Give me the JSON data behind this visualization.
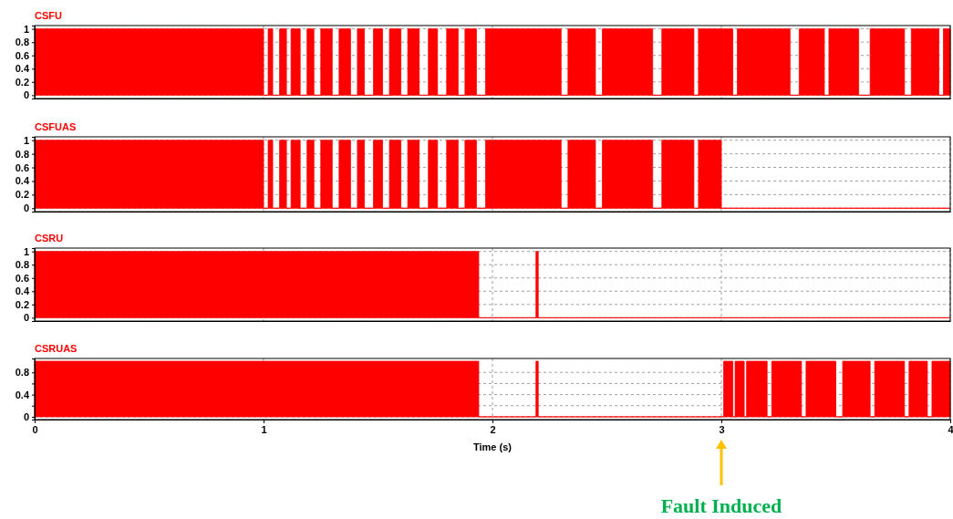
{
  "chart_data": [
    {
      "type": "area",
      "title": "CSFU",
      "x": [
        0,
        1.0,
        1.02,
        1.04,
        1.07,
        1.1,
        1.12,
        1.16,
        1.19,
        1.22,
        1.25,
        1.3,
        1.33,
        1.38,
        1.41,
        1.44,
        1.48,
        1.52,
        1.55,
        1.6,
        1.63,
        1.68,
        1.72,
        1.76,
        1.8,
        1.85,
        1.88,
        1.93,
        1.97,
        2.3,
        2.33,
        2.45,
        2.48,
        2.7,
        2.74,
        2.88,
        2.9,
        3.05,
        3.07,
        3.3,
        3.34,
        3.45,
        3.47,
        3.6,
        3.65,
        3.8,
        3.83,
        3.95,
        3.97,
        4.0
      ],
      "series": [
        {
          "color": "#ff0000",
          "values": [
            1,
            0,
            1,
            0,
            1,
            0,
            1,
            0,
            1,
            0,
            1,
            0,
            1,
            0,
            1,
            0,
            1,
            0,
            1,
            0,
            1,
            0,
            1,
            0,
            1,
            0,
            1,
            0,
            1,
            0,
            1,
            0,
            1,
            0,
            1,
            0,
            1,
            0,
            1,
            0,
            1,
            0,
            1,
            0,
            1,
            0,
            1,
            0,
            1,
            1
          ]
        }
      ],
      "xlim": [
        0,
        4
      ],
      "xticks": [
        0,
        1,
        2,
        3,
        4
      ],
      "ylim": [
        -0.05,
        1.05
      ],
      "yticks": [
        0,
        0.2,
        0.4,
        0.6,
        0.8,
        1
      ],
      "grid": true,
      "tick_labels": "y"
    },
    {
      "type": "area",
      "title": "CSFUAS",
      "x": [
        0,
        1.0,
        1.02,
        1.04,
        1.07,
        1.1,
        1.12,
        1.16,
        1.19,
        1.22,
        1.25,
        1.3,
        1.33,
        1.38,
        1.41,
        1.44,
        1.48,
        1.52,
        1.55,
        1.6,
        1.63,
        1.68,
        1.72,
        1.76,
        1.8,
        1.85,
        1.88,
        1.93,
        1.97,
        2.3,
        2.33,
        2.45,
        2.48,
        2.7,
        2.74,
        2.88,
        2.9,
        3.0,
        4.0
      ],
      "series": [
        {
          "color": "#ff0000",
          "values": [
            1,
            0,
            1,
            0,
            1,
            0,
            1,
            0,
            1,
            0,
            1,
            0,
            1,
            0,
            1,
            0,
            1,
            0,
            1,
            0,
            1,
            0,
            1,
            0,
            1,
            0,
            1,
            0,
            1,
            0,
            1,
            0,
            1,
            0,
            1,
            0,
            1,
            0,
            0
          ]
        }
      ],
      "xlim": [
        0,
        4
      ],
      "xticks": [
        0,
        1,
        2,
        3,
        4
      ],
      "ylim": [
        -0.05,
        1.05
      ],
      "yticks": [
        0,
        0.2,
        0.4,
        0.6,
        0.8,
        1
      ],
      "grid": true,
      "tick_labels": "y"
    },
    {
      "type": "area",
      "title": "CSRU",
      "x": [
        0,
        1.94,
        2.19,
        2.2,
        4.0
      ],
      "series": [
        {
          "color": "#ff0000",
          "values": [
            1,
            0,
            1,
            0,
            0
          ]
        }
      ],
      "xlim": [
        0,
        4
      ],
      "xticks": [
        0,
        1,
        2,
        3,
        4
      ],
      "ylim": [
        -0.05,
        1.05
      ],
      "yticks": [
        0,
        0.2,
        0.4,
        0.6,
        0.8,
        1
      ],
      "grid": true,
      "tick_labels": "y"
    },
    {
      "type": "area",
      "title": "CSRUAS",
      "xlabel": "Time (s)",
      "x": [
        0,
        1.94,
        2.19,
        2.2,
        3.01,
        3.05,
        3.06,
        3.1,
        3.11,
        3.2,
        3.22,
        3.35,
        3.37,
        3.5,
        3.53,
        3.65,
        3.67,
        3.8,
        3.82,
        3.9,
        3.92,
        4.0
      ],
      "series": [
        {
          "color": "#ff0000",
          "values": [
            1,
            0,
            1,
            0,
            1,
            0,
            1,
            0,
            1,
            0,
            1,
            0,
            1,
            0,
            1,
            0,
            1,
            0,
            1,
            0,
            1,
            1
          ]
        }
      ],
      "xlim": [
        0,
        4
      ],
      "xticks": [
        0,
        1,
        2,
        3,
        4
      ],
      "ylim": [
        -0.05,
        1.05
      ],
      "yticks": [
        0,
        {
          "value": 0.2,
          "label": null
        },
        0.4,
        {
          "value": 0.6,
          "label": null
        },
        0.8
      ],
      "grid": true,
      "annotations": [
        "Fault Induced"
      ]
    }
  ]
}
